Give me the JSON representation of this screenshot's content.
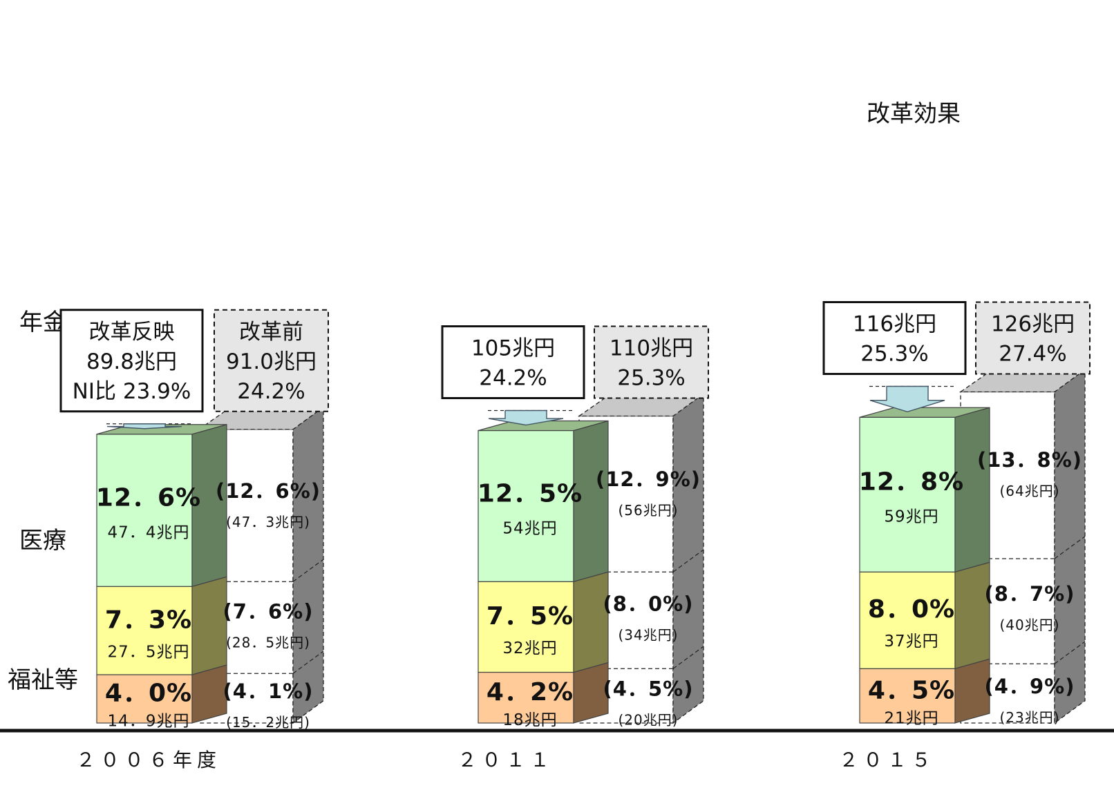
{
  "chart_data": {
    "type": "bar",
    "stacked": true,
    "title": "",
    "xlabel": "",
    "ylabel": "",
    "categories": [
      "２００６年度",
      "２０１１",
      "２０１５"
    ],
    "segment_labels": [
      "年金",
      "医療",
      "福祉等"
    ],
    "series": [
      {
        "name": "年金",
        "values": [
          12.6,
          12.5,
          12.8
        ],
        "value_labels": [
          "12．6%",
          "12．5%",
          "12．8%"
        ],
        "amount_labels": [
          "47．4兆円",
          "54兆円",
          "59兆円"
        ],
        "pre_reform_values": [
          12.6,
          12.9,
          13.8
        ],
        "pre_reform_labels": [
          "(12．6%)",
          "(12．9%)",
          "(13．8%)"
        ],
        "pre_reform_amount_labels": [
          "(47．3兆円)",
          "(56兆円)",
          "(64兆円)"
        ]
      },
      {
        "name": "医療",
        "values": [
          7.3,
          7.5,
          8.0
        ],
        "value_labels": [
          "7．3%",
          "7．5%",
          "8．0%"
        ],
        "amount_labels": [
          "27．5兆円",
          "32兆円",
          "37兆円"
        ],
        "pre_reform_values": [
          7.6,
          8.0,
          8.7
        ],
        "pre_reform_labels": [
          "(7．6%)",
          "(8．0%)",
          "(8．7%)"
        ],
        "pre_reform_amount_labels": [
          "(28．5兆円)",
          "(34兆円)",
          "(40兆円)"
        ]
      },
      {
        "name": "福祉等",
        "values": [
          4.0,
          4.2,
          4.5
        ],
        "value_labels": [
          "4．0%",
          "4．2%",
          "4．5%"
        ],
        "amount_labels": [
          "14．9兆円",
          "18兆円",
          "21兆円"
        ],
        "pre_reform_values": [
          4.1,
          4.5,
          4.9
        ],
        "pre_reform_labels": [
          "(4．1%)",
          "(4．5%)",
          "(4．9%)"
        ],
        "pre_reform_amount_labels": [
          "(15．2兆円)",
          "(20兆円)",
          "(23兆円)"
        ]
      }
    ],
    "totals": [
      {
        "after_lines": [
          "改革反映",
          "89.8兆円",
          "NI比  23.9%"
        ],
        "before_lines": [
          "改革前",
          "91.0兆円",
          "24.2%"
        ]
      },
      {
        "after_lines": [
          "105兆円",
          "24.2%"
        ],
        "before_lines": [
          "110兆円",
          "25.3%"
        ]
      },
      {
        "after_lines": [
          "116兆円",
          "25.3%"
        ],
        "before_lines": [
          "126兆円",
          "27.4%"
        ]
      }
    ],
    "annotation": "改革効果",
    "colors": {
      "pension_front": "#ccffcc",
      "pension_side": "#64805f",
      "pension_top": "#98bb8c",
      "medical_front": "#ffff99",
      "medical_side": "#808048",
      "welfare_front": "#ffcc99",
      "welfare_side": "#806040",
      "ghost_side": "#808080",
      "ghost_top": "#c8c8c8",
      "arrow": "#b8e0e4",
      "box_shade": "#e6e6e6"
    }
  }
}
